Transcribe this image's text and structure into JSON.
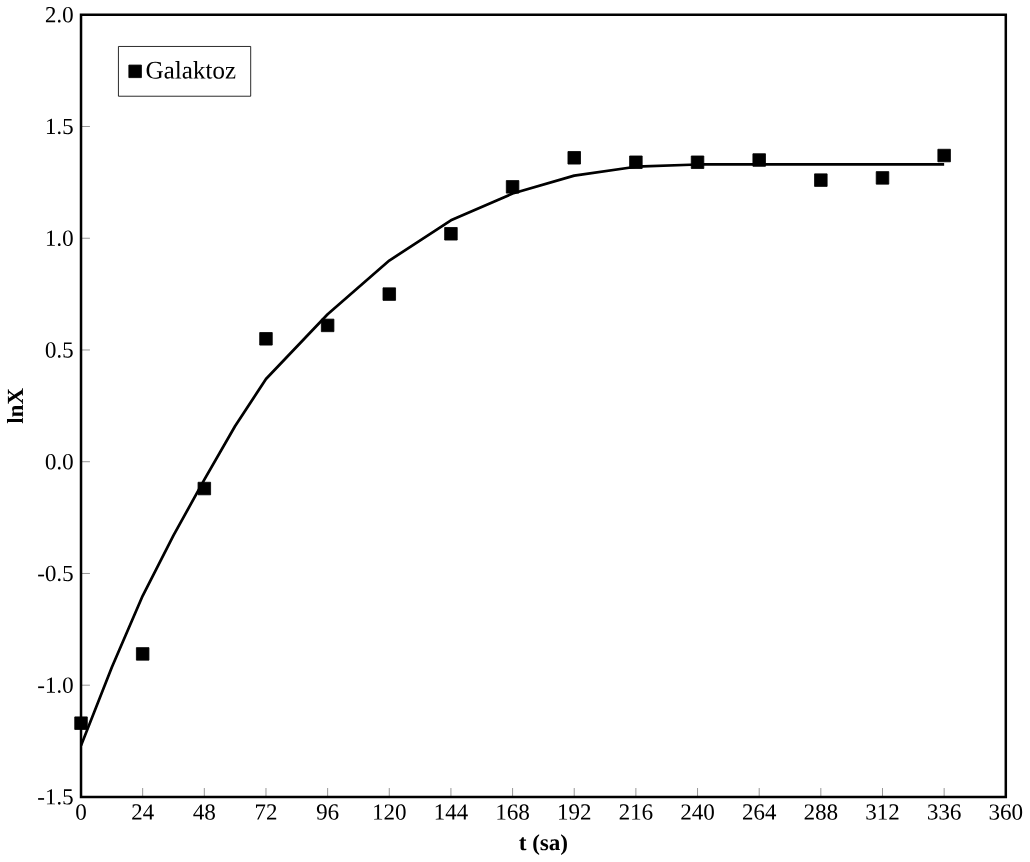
{
  "chart_data": {
    "type": "scatter",
    "xlabel": "t (sa)",
    "ylabel": "lnX",
    "xlim": [
      0,
      360
    ],
    "xticks": [
      0,
      24,
      48,
      72,
      96,
      120,
      144,
      168,
      192,
      216,
      240,
      264,
      288,
      312,
      336,
      360
    ],
    "ylim": [
      -1.5,
      2.0
    ],
    "yticks": [
      {
        "value": -1.5,
        "label": "-1.5"
      },
      {
        "value": -1.0,
        "label": "-1.0"
      },
      {
        "value": -0.5,
        "label": "-0.5"
      },
      {
        "value": 0.0,
        "label": "0.0"
      },
      {
        "value": 0.5,
        "label": "0.5"
      },
      {
        "value": 1.0,
        "label": "1.0"
      },
      {
        "value": 1.5,
        "label": "1.5"
      },
      {
        "value": 2.0,
        "label": "2.0"
      }
    ],
    "grid": false,
    "legend": "top left",
    "x": [
      0,
      24,
      48,
      72,
      96,
      120,
      144,
      168,
      192,
      216,
      240,
      264,
      288,
      312,
      336
    ],
    "series": [
      {
        "name": "Galaktoz",
        "marker": "square",
        "color": "#000000",
        "values": [
          -1.17,
          -0.86,
          -0.12,
          0.55,
          0.61,
          0.75,
          1.02,
          1.23,
          1.36,
          1.34,
          1.34,
          1.35,
          1.26,
          1.27,
          1.37
        ]
      },
      {
        "type": "line",
        "marker": "none",
        "line_style": "solid",
        "color": "#000000",
        "x": [
          0,
          12,
          24,
          36,
          48,
          60,
          72,
          96,
          120,
          144,
          168,
          192,
          216,
          240,
          264,
          288,
          312,
          336
        ],
        "values": [
          -1.27,
          -0.92,
          -0.6,
          -0.33,
          -0.08,
          0.16,
          0.37,
          0.66,
          0.9,
          1.08,
          1.2,
          1.28,
          1.32,
          1.33,
          1.33,
          1.33,
          1.33,
          1.33
        ]
      }
    ]
  }
}
